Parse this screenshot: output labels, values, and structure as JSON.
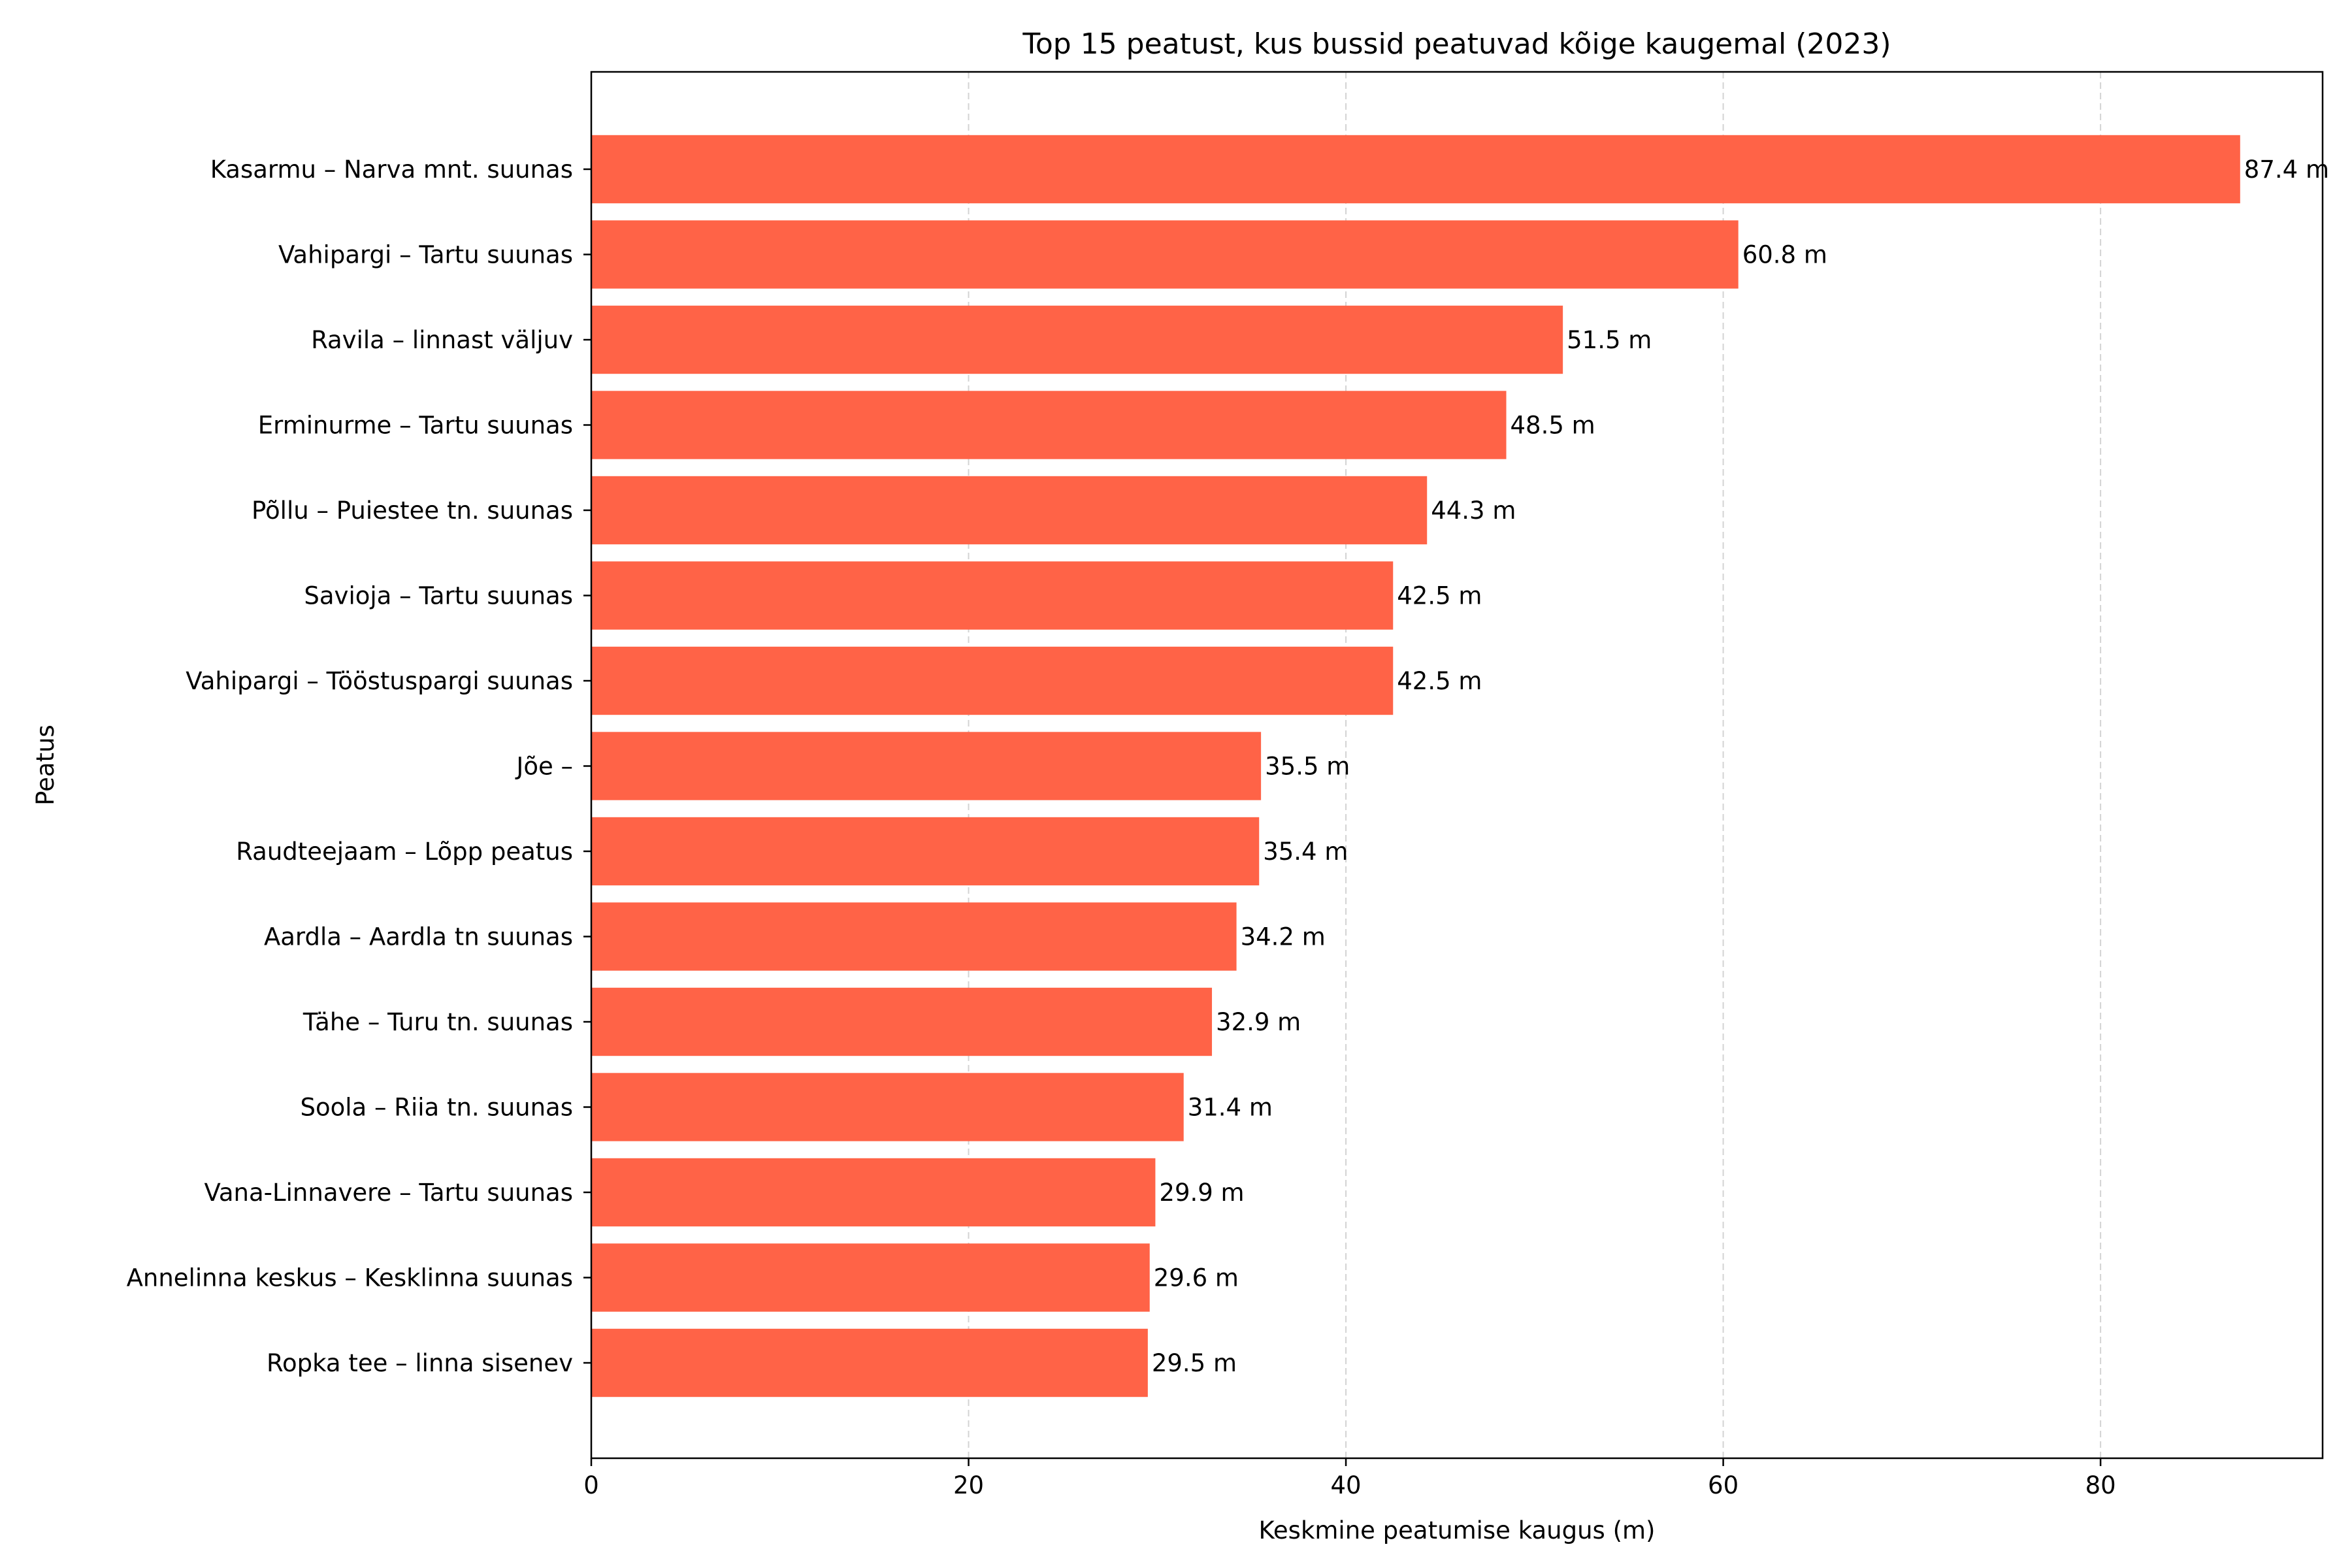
{
  "chart_data": {
    "type": "bar",
    "orientation": "horizontal",
    "title": "Top 15 peatust, kus bussid peatuvad kõige kaugemal (2023)",
    "xlabel": "Keskmine peatumise kaugus (m)",
    "ylabel": "Peatus",
    "xlim": [
      0,
      91.77
    ],
    "xticks": [
      0,
      20,
      40,
      60,
      80
    ],
    "grid": "x-dashed",
    "bar_color": "#ff6347",
    "value_suffix": " m",
    "categories": [
      "Kasarmu – Narva mnt. suunas",
      "Vahipargi – Tartu suunas",
      "Ravila – linnast väljuv",
      "Erminurme – Tartu suunas",
      "Põllu – Puiestee tn. suunas",
      "Savioja – Tartu suunas",
      "Vahipargi – Tööstuspargi suunas",
      "Jõe – ",
      "Raudteejaam – Lõpp peatus",
      "Aardla – Aardla tn suunas",
      "Tähe – Turu tn. suunas",
      "Soola – Riia tn. suunas",
      "Vana-Linnavere – Tartu suunas",
      "Annelinna keskus – Kesklinna suunas",
      "Ropka tee – linna sisenev"
    ],
    "values": [
      87.4,
      60.8,
      51.5,
      48.5,
      44.3,
      42.5,
      42.5,
      35.5,
      35.4,
      34.2,
      32.9,
      31.4,
      29.9,
      29.6,
      29.5
    ],
    "value_labels": [
      "87.4 m",
      "60.8 m",
      "51.5 m",
      "48.5 m",
      "44.3 m",
      "42.5 m",
      "42.5 m",
      "35.5 m",
      "35.4 m",
      "34.2 m",
      "32.9 m",
      "31.4 m",
      "29.9 m",
      "29.6 m",
      "29.5 m"
    ]
  }
}
